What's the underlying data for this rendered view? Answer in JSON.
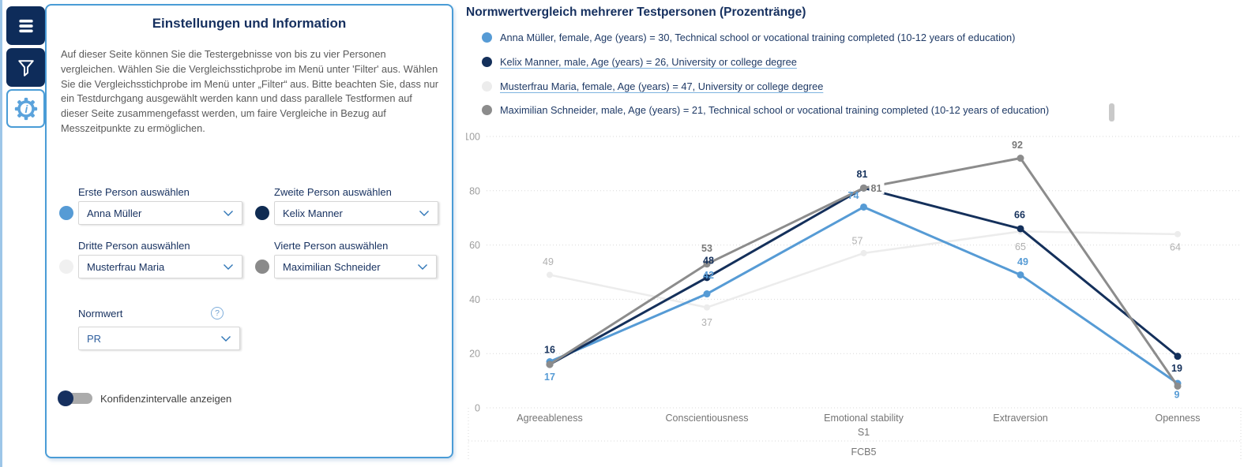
{
  "colors": {
    "accent": "#4A9CD6",
    "navy": "#0E2C5A",
    "title_blue": "#16305F",
    "grid": "#D9D9D9",
    "axis_text": "#9E9E9E",
    "category_text": "#757575"
  },
  "sidebar": {
    "buttons": [
      {
        "name": "menu"
      },
      {
        "name": "filter"
      },
      {
        "name": "settings-info",
        "active": true
      }
    ]
  },
  "panel": {
    "title": "Einstellungen und Information",
    "description": "Auf dieser Seite können Sie die Testergebnisse von bis zu vier Personen vergleichen. Wählen Sie die Vergleichsstichprobe im Menü unter 'Filter' aus. Wählen Sie die Vergleichsstichprobe im Menü unter „Filter“ aus. Bitte beachten Sie, dass nur ein Testdurchgang ausgewählt werden kann und dass parallele Testformen auf dieser Seite zusammengefasst werden, um faire Vergleiche in Bezug auf Messzeitpunkte zu ermöglichen.",
    "selectors": [
      {
        "label": "Erste Person auswählen",
        "value": "Anna Müller",
        "dot_color": "#569BD5"
      },
      {
        "label": "Zweite Person auswählen",
        "value": "Kelix Manner",
        "dot_color": "#0F2B52"
      },
      {
        "label": "Dritte Person auswählen",
        "value": "Musterfrau Maria",
        "dot_color": "#F0F0F0"
      },
      {
        "label": "Vierte Person auswählen",
        "value": "Maximilian Schneider",
        "dot_color": "#8A8A8A"
      }
    ],
    "normwert": {
      "label": "Normwert",
      "value": "PR",
      "help_icon": "question-mark-icon"
    },
    "toggle": {
      "label": "Konfidenzintervalle anzeigen",
      "state": "off"
    }
  },
  "chart_data": {
    "type": "line",
    "title": "Normwertvergleich mehrerer Testpersonen (Prozentränge)",
    "categories": [
      "Agreeableness",
      "Conscientiousness",
      "Emotional stability",
      "Extraversion",
      "Openness"
    ],
    "axis_hierarchy": [
      "S1",
      "FCB5"
    ],
    "ylim": [
      0,
      100
    ],
    "yticks": [
      0,
      20,
      40,
      60,
      80,
      100
    ],
    "grid": true,
    "legend_position": "top",
    "series": [
      {
        "name": "Anna Müller",
        "legend": "Anna Müller, female, Age (years) = 30, Technical school or vocational training completed (10-12 years of education)",
        "color": "#569BD5",
        "label_color": "#569BD5",
        "label_bold": true,
        "underlined": false,
        "stroke_width": 3,
        "marker_radius": 4.5,
        "values": [
          17,
          42,
          74,
          49,
          9
        ],
        "label_hints": [
          {
            "dx": 0,
            "dy": 19
          },
          {
            "dx": 2,
            "dy": -24
          },
          {
            "dx": -13,
            "dy": -15
          },
          {
            "dx": 3,
            "dy": -17
          },
          {
            "dx": -1,
            "dy": 14
          }
        ]
      },
      {
        "name": "Kelix Manner",
        "legend": "Kelix Manner, male, Age (years) = 26, University or college degree",
        "color": "#14305B",
        "label_color": "#14305B",
        "label_bold": true,
        "underlined": true,
        "stroke_width": 3,
        "marker_radius": 4.5,
        "values": [
          16,
          48,
          81,
          66,
          19
        ],
        "label_hints": [
          {
            "dx": 0,
            "dy": -19
          },
          {
            "dx": 2,
            "dy": -22
          },
          {
            "dx": -2,
            "dy": -18
          },
          {
            "dx": -1,
            "dy": -18
          },
          {
            "dx": -1,
            "dy": 15
          }
        ]
      },
      {
        "name": "Musterfrau Maria",
        "legend": "Musterfrau Maria, female, Age (years) = 47, University or college degree",
        "color": "#ECECEC",
        "label_color": "#B0B0B0",
        "label_bold": false,
        "underlined": true,
        "stroke_width": 2.5,
        "marker_radius": 4,
        "values": [
          49,
          37,
          57,
          65,
          64
        ],
        "label_hints": [
          {
            "dx": -2,
            "dy": -17
          },
          {
            "dx": 0,
            "dy": 19
          },
          {
            "dx": -8,
            "dy": -16
          },
          {
            "dx": 0,
            "dy": 19
          },
          {
            "dx": -3,
            "dy": 16
          }
        ]
      },
      {
        "name": "Maximilian Schneider",
        "legend": "Maximilian Schneider, male, Age (years) = 21, Technical school or vocational training completed (10-12 years of education)",
        "color": "#8C8C8C",
        "label_color": "#787878",
        "label_bold": true,
        "underlined": false,
        "stroke_width": 3,
        "marker_radius": 4.5,
        "values": [
          16,
          53,
          81,
          92,
          8
        ],
        "label_hints": [
          null,
          {
            "dx": 0,
            "dy": -20
          },
          {
            "dx": 16,
            "dy": 0,
            "chip": true
          },
          {
            "dx": -4,
            "dy": -17
          },
          null
        ]
      }
    ],
    "draw_order": [
      2,
      0,
      1,
      3
    ]
  }
}
